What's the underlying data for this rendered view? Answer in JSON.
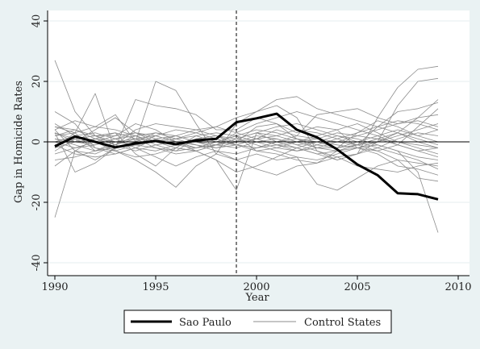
{
  "chart_data": {
    "type": "line",
    "xlabel": "Year",
    "ylabel": "Gap in Homicide Rates",
    "xlim": [
      1990,
      2010
    ],
    "ylim": [
      -40,
      40
    ],
    "xticks": [
      1990,
      1995,
      2000,
      2005,
      2010
    ],
    "yticks": [
      -40,
      -20,
      0,
      20,
      40
    ],
    "grid": true,
    "treatment_year": 1999,
    "zero_line": true,
    "legend": {
      "position": "bottom",
      "entries": [
        {
          "label": "Sao Paulo",
          "style": "thick-black"
        },
        {
          "label": "Control States",
          "style": "thin-gray"
        }
      ]
    },
    "x": [
      1990,
      1991,
      1992,
      1993,
      1994,
      1995,
      1996,
      1997,
      1998,
      1999,
      2000,
      2001,
      2002,
      2003,
      2004,
      2005,
      2006,
      2007,
      2008,
      2009
    ],
    "treated": {
      "name": "Sao Paulo",
      "color": "#000000",
      "values": [
        -1.5,
        1.8,
        0,
        -1.8,
        -0.5,
        0.3,
        -0.8,
        0.5,
        1,
        6.5,
        7.8,
        9.3,
        4,
        1.5,
        -2.5,
        -7.5,
        -11,
        -17,
        -17.3,
        -19
      ]
    },
    "controls": {
      "name": "Control States",
      "color": "#8c8c8c",
      "series": [
        [
          27,
          10,
          2,
          -1,
          -3,
          -1,
          0,
          -2,
          -1,
          -2,
          0,
          1,
          -1,
          0,
          -2,
          -1,
          0,
          3,
          8,
          14
        ],
        [
          -25,
          -3,
          -6,
          -2,
          -1,
          0,
          1,
          2,
          0,
          -1,
          -2,
          0,
          1,
          0,
          -1,
          -2,
          -1,
          -3,
          -10,
          -30
        ],
        [
          -8,
          -3,
          1,
          3,
          -4,
          -8,
          -2,
          -3,
          -6,
          -16,
          3,
          0,
          -2,
          -4,
          -6,
          -4,
          8,
          18,
          24,
          25
        ],
        [
          5,
          3,
          16,
          -3,
          -6,
          -10,
          -15,
          -8,
          -4,
          -6,
          -4,
          -6,
          -5,
          -14,
          -16,
          -12,
          -8,
          -6,
          -12,
          -13
        ],
        [
          4,
          7,
          5,
          9,
          0,
          20,
          17,
          6,
          -4,
          6,
          10,
          12,
          8,
          -3,
          -6,
          -4,
          0,
          12,
          20,
          21
        ],
        [
          3,
          -10,
          -7,
          -2,
          14,
          12,
          11,
          9,
          4,
          4,
          8,
          6,
          3,
          5,
          4,
          -2,
          -3,
          -1,
          5,
          11
        ],
        [
          -3,
          1,
          2,
          2,
          6,
          4,
          0,
          -3,
          -6,
          -10,
          -8,
          -5,
          -2,
          -4,
          -3,
          -1,
          5,
          10,
          11,
          13
        ],
        [
          4,
          -3,
          -4,
          -1,
          4,
          6,
          5,
          4,
          2,
          -1,
          1,
          4,
          2,
          9,
          10,
          11,
          8,
          6,
          7,
          5
        ],
        [
          -2,
          3,
          -3,
          0,
          1,
          -2,
          -3,
          1,
          2,
          0,
          5,
          6,
          1,
          -2,
          -2,
          3,
          7,
          5,
          2,
          4
        ],
        [
          6,
          2,
          0,
          -3,
          -5,
          -4,
          -2,
          2,
          3,
          2,
          -3,
          -4,
          -6,
          -7,
          -5,
          -8,
          -9,
          -10,
          -8,
          -7
        ],
        [
          10,
          6,
          -2,
          -4,
          -2,
          -5,
          -8,
          -5,
          -3,
          -6,
          -9,
          -11,
          -8,
          -7,
          -3,
          -2,
          -4,
          -8,
          -9,
          -11
        ],
        [
          1,
          0,
          4,
          8,
          3,
          0,
          1,
          3,
          5,
          8,
          10,
          14,
          15,
          11,
          9,
          7,
          5,
          3,
          0,
          -2
        ],
        [
          -1,
          -4,
          -5,
          -4,
          -2,
          1,
          2,
          0,
          -1,
          3,
          6,
          8,
          10,
          8,
          6,
          4,
          2,
          -1,
          -3,
          -5
        ],
        [
          2,
          4,
          1,
          -1,
          2,
          3,
          1,
          -1,
          -3,
          -4,
          -2,
          -1,
          0,
          2,
          4,
          6,
          3,
          0,
          -2,
          -4
        ],
        [
          0,
          2,
          3,
          1,
          -2,
          -3,
          -1,
          1,
          2,
          1,
          -1,
          -3,
          -5,
          -6,
          -4,
          -2,
          0,
          2,
          4,
          6
        ],
        [
          3,
          1,
          -2,
          -3,
          -1,
          2,
          4,
          3,
          1,
          -1,
          -3,
          -2,
          0,
          1,
          3,
          2,
          1,
          -1,
          -3,
          -2
        ],
        [
          -4,
          -2,
          0,
          2,
          3,
          1,
          -1,
          -2,
          0,
          2,
          4,
          3,
          1,
          -1,
          -2,
          0,
          2,
          4,
          2,
          0
        ],
        [
          1,
          -1,
          -3,
          -2,
          0,
          3,
          2,
          0,
          -2,
          -1,
          1,
          2,
          4,
          3,
          1,
          -1,
          -3,
          -6,
          -7,
          -8
        ],
        [
          -2,
          0,
          1,
          0,
          -1,
          -2,
          -4,
          -3,
          -1,
          0,
          2,
          1,
          -1,
          -3,
          -5,
          -4,
          -2,
          1,
          3,
          2
        ],
        [
          5,
          4,
          2,
          0,
          -1,
          0,
          2,
          4,
          5,
          3,
          1,
          -1,
          -2,
          0,
          2,
          1,
          -1,
          -3,
          -5,
          -6
        ],
        [
          -6,
          -5,
          -3,
          -1,
          1,
          2,
          0,
          -2,
          -1,
          1,
          3,
          5,
          6,
          4,
          2,
          0,
          -2,
          -4,
          -6,
          -9
        ],
        [
          2,
          3,
          5,
          4,
          2,
          -1,
          -3,
          -2,
          0,
          2,
          0,
          -2,
          -3,
          -1,
          1,
          3,
          5,
          7,
          6,
          4
        ],
        [
          -1,
          1,
          2,
          3,
          1,
          0,
          -1,
          0,
          1,
          -1,
          -2,
          0,
          2,
          1,
          0,
          -1,
          1,
          0,
          -1,
          -2
        ],
        [
          3,
          0,
          -1,
          1,
          3,
          2,
          0,
          -1,
          -2,
          0,
          1,
          -1,
          -3,
          -2,
          0,
          2,
          4,
          6,
          8,
          9
        ],
        [
          0,
          -2,
          -1,
          1,
          2,
          0,
          -2,
          -3,
          -1,
          1,
          3,
          2,
          0,
          -2,
          -3,
          -1,
          1,
          3,
          1,
          -1
        ]
      ]
    }
  }
}
